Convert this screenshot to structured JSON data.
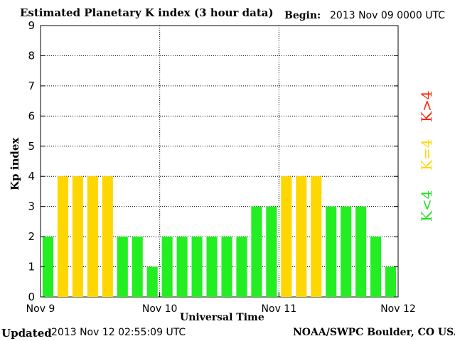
{
  "header": {
    "title": "Estimated Planetary K index (3 hour data)",
    "begin_label": "Begin:",
    "begin_value": "2013 Nov 09 0000 UTC"
  },
  "footer": {
    "updated_label": "Updated",
    "updated_value": "2013 Nov 12 02:55:09 UTC",
    "credit": "NOAA/SWPC Boulder, CO USA"
  },
  "legend": {
    "high": "K>4",
    "mid": "K=4",
    "low": "K<4"
  },
  "colors": {
    "low": "#22ee22",
    "mid": "#ffd700",
    "high": "#ff2200"
  },
  "chart_data": {
    "type": "bar",
    "title": "Estimated Planetary K index (3 hour data)",
    "xlabel": "Universal Time",
    "ylabel": "Kp index",
    "ylim": [
      0,
      9
    ],
    "yticks": [
      "0",
      "1",
      "2",
      "3",
      "4",
      "5",
      "6",
      "7",
      "8",
      "9"
    ],
    "xticks": [
      "Nov 9",
      "Nov 10",
      "Nov 11",
      "Nov 12"
    ],
    "grid": true,
    "values": [
      2,
      4,
      4,
      4,
      4,
      2,
      2,
      1,
      2,
      2,
      2,
      2,
      2,
      2,
      3,
      3,
      4,
      4,
      4,
      3,
      3,
      3,
      2,
      1
    ]
  }
}
